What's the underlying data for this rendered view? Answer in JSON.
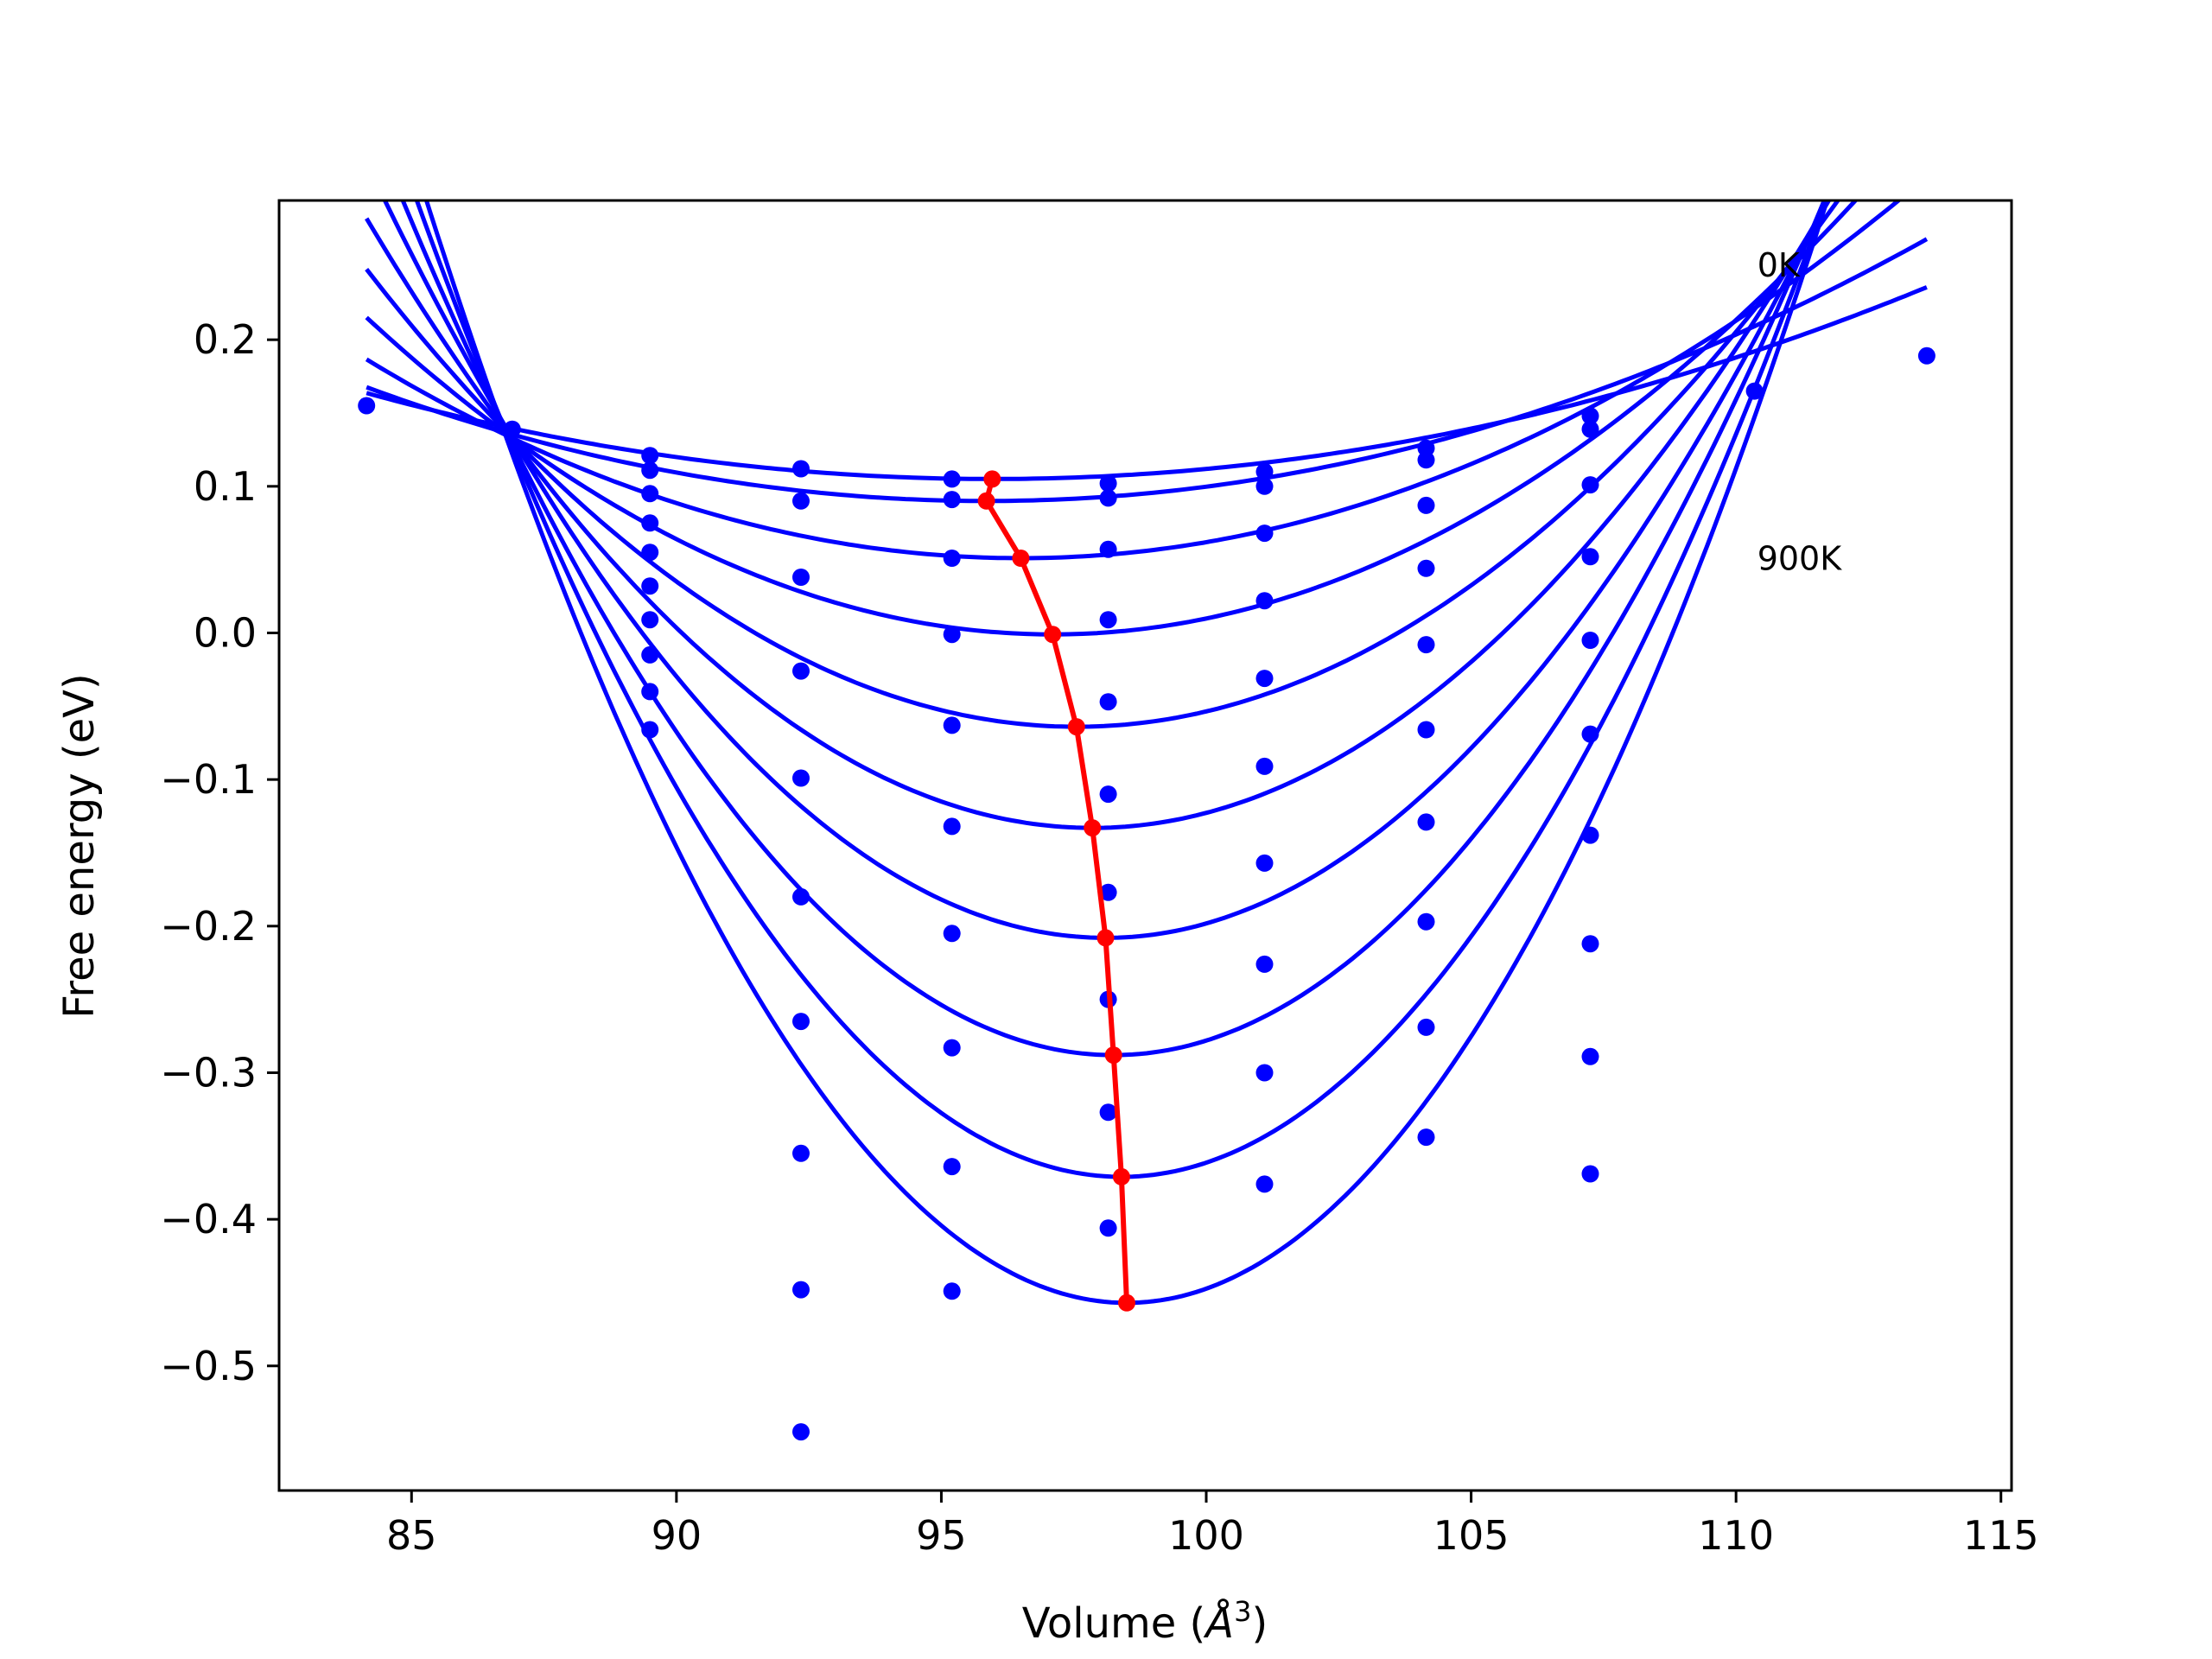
{
  "chart_data": {
    "type": "line",
    "title": "",
    "xlabel": "Volume (",
    "xlabel_sym": "Å",
    "xlabel_sup": "3",
    "xlabel_close": ")",
    "ylabel": "Free energy (eV)",
    "xlim": [
      82.5,
      115.2
    ],
    "ylim": [
      -0.585,
      0.295
    ],
    "xticks": [
      85,
      90,
      95,
      100,
      105,
      110,
      115
    ],
    "xtick_labels": [
      "85",
      "90",
      "95",
      "100",
      "105",
      "110",
      "115"
    ],
    "yticks": [
      0.2,
      0.1,
      0.0,
      -0.1,
      -0.2,
      -0.3,
      -0.4,
      -0.5
    ],
    "ytick_labels": [
      "0.2",
      "0.1",
      "0.0",
      "−0.1",
      "−0.2",
      "−0.3",
      "−0.4",
      "−0.5"
    ],
    "grid": false,
    "colors": {
      "fit_curves": "#0000ff",
      "data_points": "#0000ff",
      "minimum_path": "#ff0000"
    },
    "annotations": [
      {
        "text": "0K",
        "x": 110.4,
        "y": 0.243
      },
      {
        "text": "900K",
        "x": 110.4,
        "y": 0.043
      }
    ],
    "fit_curves": {
      "x_range": [
        84.15,
        113.6
      ],
      "series": [
        {
          "v0": 95.96,
          "e0": 0.105,
          "k": 0.0004205
        },
        {
          "v0": 95.85,
          "e0": 0.09,
          "k": 0.000567
        },
        {
          "v0": 96.5,
          "e0": 0.051,
          "k": 0.000889
        },
        {
          "v0": 97.1,
          "e0": -0.001,
          "k": 0.001289
        },
        {
          "v0": 97.55,
          "e0": -0.064,
          "k": 0.001738
        },
        {
          "v0": 97.85,
          "e0": -0.133,
          "k": 0.002215
        },
        {
          "v0": 98.1,
          "e0": -0.208,
          "k": 0.002718
        },
        {
          "v0": 98.25,
          "e0": -0.288,
          "k": 0.00324
        },
        {
          "v0": 98.4,
          "e0": -0.371,
          "k": 0.003765
        },
        {
          "v0": 98.5,
          "e0": -0.457,
          "k": 0.004304
        }
      ]
    },
    "data_points": [
      [
        84.15,
        0.155
      ],
      [
        86.9,
        0.139
      ],
      [
        89.5,
        0.121
      ],
      [
        89.5,
        0.111
      ],
      [
        89.5,
        0.095
      ],
      [
        89.5,
        0.075
      ],
      [
        89.5,
        0.055
      ],
      [
        89.5,
        0.032
      ],
      [
        89.5,
        0.009
      ],
      [
        89.5,
        -0.015
      ],
      [
        89.5,
        -0.04
      ],
      [
        89.5,
        -0.066
      ],
      [
        92.35,
        0.112
      ],
      [
        92.35,
        0.09
      ],
      [
        92.35,
        0.038
      ],
      [
        92.35,
        -0.026
      ],
      [
        92.35,
        -0.099
      ],
      [
        92.35,
        -0.18
      ],
      [
        92.35,
        -0.265
      ],
      [
        92.35,
        -0.355
      ],
      [
        92.35,
        -0.448
      ],
      [
        92.35,
        -0.545
      ],
      [
        95.2,
        0.105
      ],
      [
        95.2,
        0.091
      ],
      [
        95.2,
        0.051
      ],
      [
        95.2,
        -0.001
      ],
      [
        95.2,
        -0.063
      ],
      [
        95.2,
        -0.132
      ],
      [
        95.2,
        -0.205
      ],
      [
        95.2,
        -0.283
      ],
      [
        95.2,
        -0.364
      ],
      [
        95.2,
        -0.449
      ],
      [
        98.15,
        0.102
      ],
      [
        98.15,
        0.092
      ],
      [
        98.15,
        0.057
      ],
      [
        98.15,
        0.009
      ],
      [
        98.15,
        -0.047
      ],
      [
        98.15,
        -0.11
      ],
      [
        98.15,
        -0.177
      ],
      [
        98.15,
        -0.25
      ],
      [
        98.15,
        -0.327
      ],
      [
        98.15,
        -0.406
      ],
      [
        101.1,
        0.11
      ],
      [
        101.1,
        0.1
      ],
      [
        101.1,
        0.068
      ],
      [
        101.1,
        0.022
      ],
      [
        101.1,
        -0.031
      ],
      [
        101.1,
        -0.091
      ],
      [
        101.1,
        -0.157
      ],
      [
        101.1,
        -0.226
      ],
      [
        101.1,
        -0.3
      ],
      [
        101.1,
        -0.376
      ],
      [
        104.15,
        0.126
      ],
      [
        104.15,
        0.118
      ],
      [
        104.15,
        0.087
      ],
      [
        104.15,
        0.044
      ],
      [
        104.15,
        -0.008
      ],
      [
        104.15,
        -0.066
      ],
      [
        104.15,
        -0.129
      ],
      [
        104.15,
        -0.197
      ],
      [
        104.15,
        -0.269
      ],
      [
        104.15,
        -0.344
      ],
      [
        107.25,
        0.148
      ],
      [
        107.25,
        0.139
      ],
      [
        107.25,
        0.101
      ],
      [
        107.25,
        0.052
      ],
      [
        107.25,
        -0.005
      ],
      [
        107.25,
        -0.069
      ],
      [
        107.25,
        -0.138
      ],
      [
        107.25,
        -0.212
      ],
      [
        107.25,
        -0.289
      ],
      [
        107.25,
        -0.369
      ],
      [
        110.35,
        0.165
      ],
      [
        113.6,
        0.189
      ]
    ],
    "minimum_path": {
      "x": [
        95.96,
        95.85,
        96.5,
        97.1,
        97.55,
        97.85,
        98.1,
        98.25,
        98.4,
        98.5
      ],
      "y": [
        0.105,
        0.09,
        0.051,
        -0.001,
        -0.064,
        -0.133,
        -0.208,
        -0.288,
        -0.371,
        -0.457
      ]
    }
  }
}
